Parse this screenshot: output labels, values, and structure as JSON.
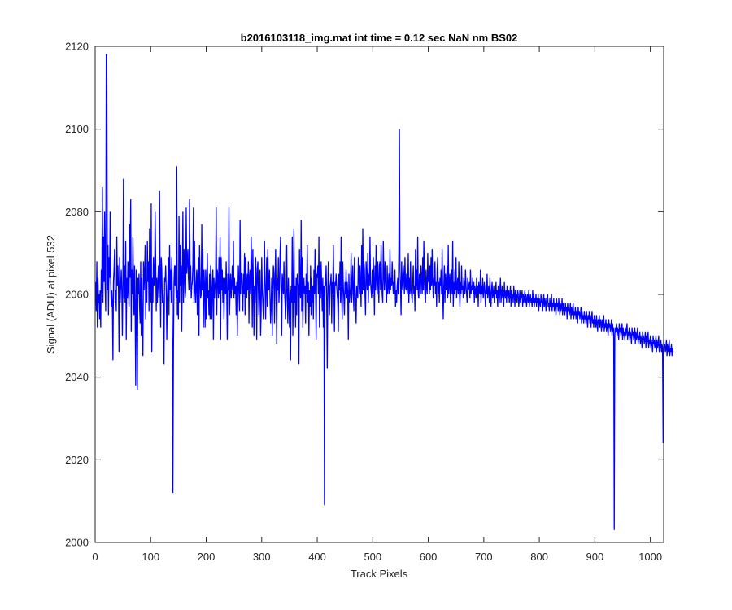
{
  "chart_data": {
    "type": "line",
    "title": "b2016103118_img.mat int time = 0.12 sec  NaN nm BS02",
    "xlabel": "Track Pixels",
    "ylabel": "Signal (ADU) at pixel 532",
    "xlim": [
      0,
      1024
    ],
    "ylim": [
      2000,
      2120
    ],
    "xticks": [
      0,
      100,
      200,
      300,
      400,
      500,
      600,
      700,
      800,
      900,
      1000
    ],
    "yticks": [
      2000,
      2020,
      2040,
      2060,
      2080,
      2100,
      2120
    ],
    "grid": false,
    "legend": "none",
    "line_color": "#0000ff",
    "series": [
      {
        "color": "#0000ff",
        "x_start": 1,
        "x_step": 1,
        "values": [
          2063,
          2056,
          2068,
          2052,
          2064,
          2058,
          2060,
          2054,
          2061,
          2052,
          2066,
          2060,
          2086,
          2058,
          2074,
          2063,
          2080,
          2062,
          2056,
          2068,
          2118,
          2061,
          2072,
          2055,
          2069,
          2064,
          2080,
          2063,
          2057,
          2061,
          2058,
          2044,
          2063,
          2066,
          2071,
          2058,
          2061,
          2056,
          2074,
          2062,
          2067,
          2061,
          2046,
          2069,
          2058,
          2062,
          2066,
          2061,
          2050,
          2063,
          2088,
          2059,
          2067,
          2058,
          2073,
          2049,
          2064,
          2059,
          2068,
          2061,
          2057,
          2077,
          2064,
          2083,
          2051,
          2066,
          2060,
          2074,
          2063,
          2055,
          2067,
          2056,
          2038,
          2066,
          2058,
          2037,
          2064,
          2060,
          2065,
          2057,
          2053,
          2068,
          2050,
          2064,
          2052,
          2045,
          2068,
          2061,
          2065,
          2072,
          2054,
          2063,
          2058,
          2073,
          2063,
          2068,
          2056,
          2076,
          2064,
          2058,
          2082,
          2046,
          2064,
          2058,
          2069,
          2062,
          2063,
          2080,
          2068,
          2056,
          2064,
          2058,
          2063,
          2067,
          2059,
          2085,
          2064,
          2052,
          2069,
          2066,
          2058,
          2061,
          2057,
          2043,
          2064,
          2063,
          2067,
          2061,
          2049,
          2059,
          2063,
          2069,
          2055,
          2072,
          2061,
          2066,
          2058,
          2069,
          2060,
          2078,
          2046,
          2063,
          2067,
          2062,
          2067,
          2059,
          2091,
          2055,
          2061,
          2054,
          2079,
          2058,
          2072,
          2062,
          2067,
          2051,
          2065,
          2080,
          2058,
          2071,
          2065,
          2059,
          2061,
          2081,
          2065,
          2068,
          2071,
          2064,
          2061,
          2083,
          2066,
          2067,
          2059,
          2062,
          2063,
          2067,
          2081,
          2058,
          2073,
          2061,
          2058,
          2063,
          2066,
          2055,
          2064,
          2069,
          2050,
          2072,
          2064,
          2059,
          2060,
          2077,
          2061,
          2071,
          2052,
          2066,
          2062,
          2052,
          2066,
          2054,
          2063,
          2070,
          2059,
          2061,
          2055,
          2065,
          2054,
          2067,
          2061,
          2054,
          2063,
          2066,
          2049,
          2064,
          2059,
          2062,
          2064,
          2081,
          2055,
          2066,
          2064,
          2059,
          2069,
          2060,
          2074,
          2049,
          2069,
          2061,
          2066,
          2058,
          2064,
          2054,
          2061,
          2064,
          2060,
          2068,
          2060,
          2049,
          2065,
          2061,
          2081,
          2055,
          2061,
          2065,
          2059,
          2062,
          2067,
          2061,
          2073,
          2059,
          2064,
          2060,
          2062,
          2055,
          2063,
          2050,
          2060,
          2067,
          2061,
          2056,
          2078,
          2060,
          2065,
          2065,
          2061,
          2056,
          2065,
          2060,
          2070,
          2055,
          2069,
          2063,
          2059,
          2065,
          2061,
          2068,
          2053,
          2064,
          2066,
          2060,
          2074,
          2066,
          2052,
          2071,
          2061,
          2050,
          2062,
          2058,
          2069,
          2064,
          2049,
          2066,
          2068,
          2061,
          2055,
          2062,
          2066,
          2050,
          2056,
          2069,
          2061,
          2058,
          2054,
          2062,
          2073,
          2062,
          2054,
          2062,
          2069,
          2057,
          2071,
          2063,
          2061,
          2066,
          2059,
          2053,
          2058,
          2064,
          2050,
          2061,
          2067,
          2065,
          2053,
          2063,
          2071,
          2060,
          2048,
          2064,
          2061,
          2069,
          2058,
          2062,
          2070,
          2074,
          2060,
          2050,
          2065,
          2063,
          2060,
          2068,
          2061,
          2058,
          2054,
          2061,
          2072,
          2059,
          2053,
          2064,
          2058,
          2052,
          2061,
          2044,
          2062,
          2058,
          2074,
          2050,
          2060,
          2076,
          2058,
          2062,
          2052,
          2064,
          2055,
          2065,
          2063,
          2062,
          2043,
          2071,
          2061,
          2059,
          2078,
          2056,
          2069,
          2052,
          2062,
          2064,
          2060,
          2062,
          2053,
          2065,
          2060,
          2072,
          2058,
          2063,
          2050,
          2061,
          2057,
          2067,
          2055,
          2064,
          2058,
          2062,
          2054,
          2066,
          2060,
          2071,
          2061,
          2049,
          2065,
          2064,
          2067,
          2060,
          2074,
          2052,
          2067,
          2059,
          2068,
          2062,
          2056,
          2064,
          2052,
          2062,
          2061,
          2063,
          2062,
          2067,
          2059,
          2042,
          2061,
          2068,
          2060,
          2055,
          2062,
          2063,
          2065,
          2053,
          2063,
          2060,
          2072,
          2061,
          2051,
          2063,
          2062,
          2065,
          2062,
          2060,
          2058,
          2051,
          2065,
          2061,
          2068,
          2058,
          2074,
          2060,
          2054,
          2068,
          2062,
          2059,
          2055,
          2063,
          2060,
          2066,
          2059,
          2063,
          2060,
          2049,
          2065,
          2058,
          2060,
          2062,
          2070,
          2058,
          2062,
          2067,
          2060,
          2056,
          2069,
          2062,
          2058,
          2053,
          2062,
          2061,
          2059,
          2069,
          2064,
          2060,
          2067,
          2062,
          2057,
          2072,
          2060,
          2076,
          2061,
          2068,
          2066,
          2060,
          2055,
          2068,
          2064,
          2061,
          2070,
          2058,
          2065,
          2062,
          2074,
          2063,
          2061,
          2059,
          2066,
          2060,
          2069,
          2063,
          2055,
          2067,
          2061,
          2072,
          2064,
          2060,
          2068,
          2063,
          2058,
          2067,
          2068,
          2061,
          2072,
          2064,
          2060,
          2058,
          2073,
          2065,
          2061,
          2068,
          2064,
          2060,
          2058,
          2067,
          2060,
          2062,
          2065,
          2060,
          2071,
          2061,
          2064,
          2062,
          2068,
          2063,
          2060,
          2063,
          2060,
          2066,
          2057,
          2061,
          2058,
          2062,
          2064,
          2060,
          2071,
          2061,
          2066,
          2062,
          2055,
          2068,
          2063,
          2061,
          2067,
          2064,
          2060,
          2069,
          2062,
          2061,
          2065,
          2060,
          2062,
          2070,
          2058,
          2064,
          2060,
          2068,
          2061,
          2060,
          2058,
          2063,
          2067,
          2060,
          2062,
          2056,
          2071,
          2062,
          2066,
          2061,
          2074,
          2060,
          2059,
          2065,
          2062,
          2060,
          2067,
          2064,
          2060,
          2069,
          2061,
          2073,
          2063,
          2060,
          2058,
          2066,
          2062,
          2060,
          2070,
          2063,
          2064,
          2060,
          2067,
          2061,
          2069,
          2062,
          2071,
          2063,
          2059,
          2064,
          2062,
          2068,
          2060,
          2063,
          2057,
          2066,
          2069,
          2060,
          2063,
          2058,
          2064,
          2062,
          2066,
          2060,
          2071,
          2061,
          2054,
          2062,
          2067,
          2058,
          2065,
          2061,
          2063,
          2067,
          2059,
          2072,
          2060,
          2063,
          2065,
          2058,
          2062,
          2066,
          2060,
          2073,
          2057,
          2063,
          2060,
          2066,
          2061,
          2069,
          2059,
          2062,
          2064,
          2060,
          2068,
          2061,
          2057,
          2063,
          2060,
          2067,
          2061,
          2062,
          2059,
          2064,
          2062,
          2060,
          2066,
          2062,
          2060,
          2058,
          2064,
          2061,
          2062,
          2063,
          2059,
          2066,
          2060,
          2062,
          2061,
          2064,
          2060,
          2063,
          2058,
          2062,
          2061,
          2059,
          2064,
          2060,
          2062,
          2057,
          2063,
          2061,
          2060,
          2066,
          2058,
          2062,
          2060,
          2064,
          2059,
          2061,
          2063,
          2060,
          2057,
          2062,
          2060,
          2065,
          2059,
          2061,
          2062,
          2058,
          2064,
          2060,
          2057,
          2061,
          2063,
          2059,
          2060,
          2062,
          2058,
          2061,
          2060,
          2063,
          2059,
          2061,
          2057,
          2062,
          2060,
          2058,
          2061,
          2064,
          2058,
          2060,
          2062,
          2059,
          2061,
          2057,
          2063,
          2060,
          2059,
          2061,
          2058,
          2062,
          2060,
          2059,
          2061,
          2058,
          2060,
          2062,
          2057,
          2061,
          2059,
          2060,
          2058,
          2062,
          2060,
          2057,
          2061,
          2059,
          2060,
          2058,
          2061,
          2060,
          2057,
          2059,
          2061,
          2058,
          2060,
          2059,
          2061,
          2057,
          2060,
          2058,
          2059,
          2061,
          2058,
          2060,
          2057,
          2059,
          2060,
          2058,
          2061,
          2057,
          2059,
          2060,
          2058,
          2059,
          2057,
          2061,
          2058,
          2060,
          2057,
          2059,
          2058,
          2060,
          2057,
          2059,
          2058,
          2060,
          2056,
          2059,
          2058,
          2057,
          2060,
          2058,
          2059,
          2056,
          2058,
          2060,
          2057,
          2059,
          2058,
          2056,
          2059,
          2058,
          2060,
          2057,
          2058,
          2056,
          2059,
          2057,
          2058,
          2060,
          2056,
          2058,
          2057,
          2059,
          2056,
          2058,
          2057,
          2055,
          2059,
          2057,
          2058,
          2056,
          2059,
          2057,
          2055,
          2058,
          2056,
          2057,
          2059,
          2055,
          2058,
          2056,
          2057,
          2055,
          2058,
          2056,
          2057,
          2054,
          2058,
          2056,
          2057,
          2055,
          2056,
          2058,
          2054,
          2057,
          2055,
          2056,
          2058,
          2054,
          2056,
          2055,
          2057,
          2054,
          2056,
          2055,
          2053,
          2057,
          2055,
          2056,
          2054,
          2055,
          2057,
          2053,
          2056,
          2054,
          2055,
          2053,
          2056,
          2054,
          2055,
          2053,
          2056,
          2054,
          2052,
          2055,
          2054,
          2056,
          2053,
          2055,
          2052,
          2054,
          2056,
          2053,
          2054,
          2052,
          2055,
          2053,
          2054,
          2052,
          2055,
          2053,
          2051,
          2054,
          2053,
          2055,
          2052,
          2054,
          2053,
          2051,
          2054,
          2052,
          2053,
          2055,
          2051,
          2053,
          2052,
          2054,
          2051,
          2053,
          2052,
          2050,
          2054,
          2052,
          2053,
          2051,
          2052,
          2054,
          2050,
          2053,
          2051,
          2052,
          2054,
          2050,
          2052,
          2051,
          2053,
          2050,
          2052,
          2051,
          2049,
          2053,
          2051,
          2052,
          2050,
          2051,
          2053,
          2049,
          2052,
          2050,
          2051,
          2049,
          2052,
          2050,
          2051,
          2053,
          2049,
          2051,
          2050,
          2052,
          2049,
          2051,
          2050,
          2048,
          2052,
          2050,
          2051,
          2049,
          2050,
          2052,
          2048,
          2051,
          2049,
          2050,
          2052,
          2048,
          2050,
          2049,
          2051,
          2048,
          2050,
          2049,
          2047,
          2051,
          2049,
          2050,
          2048,
          2049,
          2051,
          2047,
          2050,
          2048,
          2049,
          2051,
          2047,
          2049,
          2048,
          2050,
          2047,
          2049,
          2048,
          2046,
          2050,
          2048,
          2049,
          2047,
          2048,
          2050,
          2046,
          2049,
          2047,
          2048,
          2050,
          2046,
          2048,
          2047,
          2049,
          2046,
          2048,
          2047,
          2045,
          2049,
          2047,
          2048,
          2046,
          2047,
          2049,
          2045,
          2048,
          2046,
          2047,
          2049,
          2045,
          2047,
          2046,
          2048,
          2045,
          2047,
          2046
        ]
      }
    ],
    "extremes": [
      {
        "x": 20,
        "y": 2118
      },
      {
        "x": 140,
        "y": 2012
      },
      {
        "x": 413,
        "y": 2009
      },
      {
        "x": 548,
        "y": 2100
      },
      {
        "x": 935,
        "y": 2003
      },
      {
        "x": 1023,
        "y": 2024
      }
    ]
  }
}
